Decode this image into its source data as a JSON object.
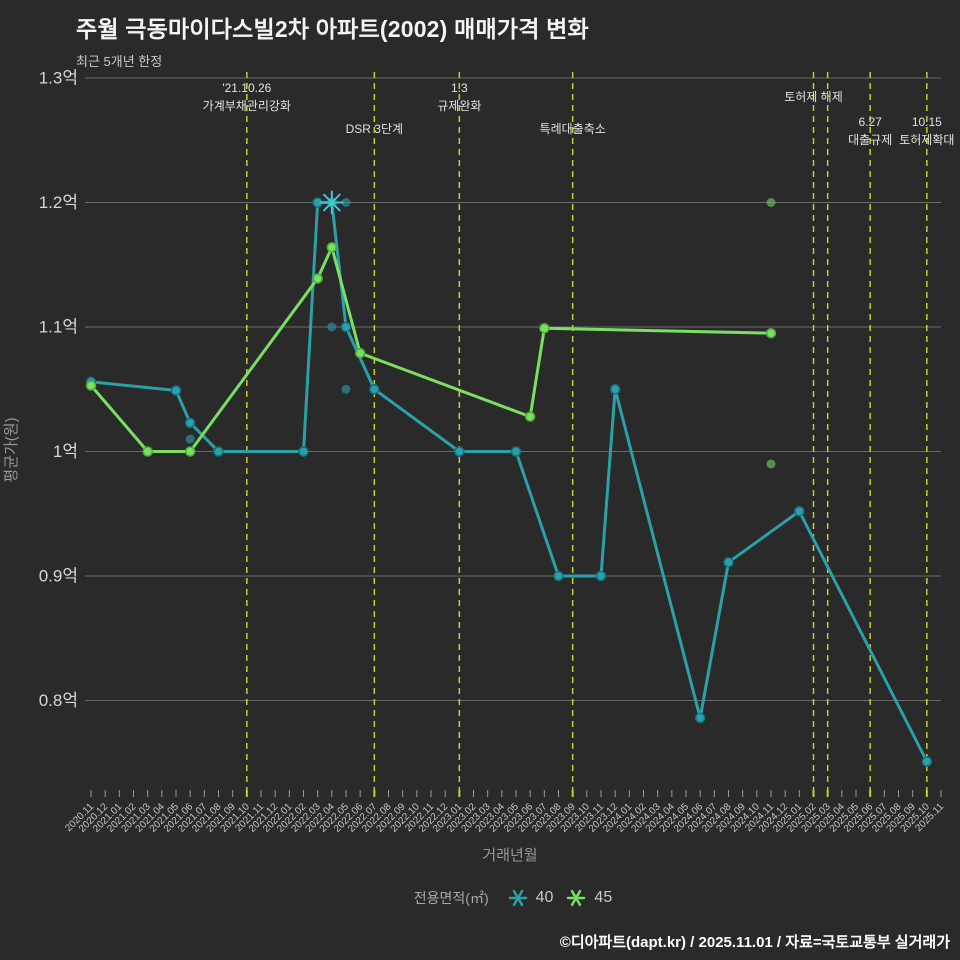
{
  "header": {
    "title": "주월 극동마이다스빌2차 아파트(2002) 매매가격 변화",
    "subtitle": "최근 5개년 한정"
  },
  "footer": {
    "credit": "©디아파트(dapt.kr) / 2025.11.01 / 자료=국토교통부 실거래가"
  },
  "colors": {
    "background": "#2a2a2a",
    "series_40": "#2aa0a8",
    "series_40_ring": "#15707e",
    "series_40_scatter": "#2a8f9b",
    "series_45": "#79de61",
    "series_45_ring": "#4da83e",
    "series_45_scatter": "#6cb95b",
    "event_line": "#c6ce2f",
    "gridline": "#757575",
    "tick": "#9a9a9a",
    "x_tick_label": "#c6c6c6",
    "y_tick_label": "#d6d6d6",
    "axis_title": "#989898",
    "event_label": "#e2e2e2"
  },
  "chart_data": {
    "type": "line",
    "title": "주월 극동마이다스빌2차 아파트(2002) 매매가격 변화",
    "xlabel": "거래년월",
    "ylabel": "평균가(원)",
    "ylim": [
      0.725,
      1.315
    ],
    "grid": "horizontal-only",
    "legend_position": "bottom-center",
    "y_ticks": [
      {
        "value": 1.3,
        "label": "1.3억"
      },
      {
        "value": 1.2,
        "label": "1.2억"
      },
      {
        "value": 1.1,
        "label": "1.1억"
      },
      {
        "value": 1.0,
        "label": "1억"
      },
      {
        "value": 0.9,
        "label": "0.9억"
      },
      {
        "value": 0.8,
        "label": "0.8억"
      }
    ],
    "categories": [
      "2020.11",
      "2020.12",
      "2021.01",
      "2021.02",
      "2021.03",
      "2021.04",
      "2021.05",
      "2021.06",
      "2021.07",
      "2021.08",
      "2021.09",
      "2021.10",
      "2021.11",
      "2021.12",
      "2022.01",
      "2022.02",
      "2022.03",
      "2022.04",
      "2022.05",
      "2022.06",
      "2022.07",
      "2022.08",
      "2022.09",
      "2022.10",
      "2022.11",
      "2022.12",
      "2023.01",
      "2023.02",
      "2023.03",
      "2023.04",
      "2023.05",
      "2023.06",
      "2023.07",
      "2023.08",
      "2023.09",
      "2023.10",
      "2023.11",
      "2023.12",
      "2024.01",
      "2024.02",
      "2024.03",
      "2024.04",
      "2024.05",
      "2024.06",
      "2024.07",
      "2024.08",
      "2024.09",
      "2024.10",
      "2024.11",
      "2024.12",
      "2025.01",
      "2025.02",
      "2025.03",
      "2025.04",
      "2025.05",
      "2025.06",
      "2025.07",
      "2025.08",
      "2025.09",
      "2025.10",
      "2025.11"
    ],
    "series": [
      {
        "name": "40",
        "points": [
          [
            "2020.11",
            1.056
          ],
          [
            "2021.05",
            1.049
          ],
          [
            "2021.06",
            1.023
          ],
          [
            "2021.08",
            1.0
          ],
          [
            "2022.02",
            1.0
          ],
          [
            "2022.03",
            1.2
          ],
          [
            "2022.04",
            1.2
          ],
          [
            "2022.05",
            1.1
          ],
          [
            "2022.07",
            1.05
          ],
          [
            "2023.01",
            1.0
          ],
          [
            "2023.05",
            1.0
          ],
          [
            "2023.08",
            0.9
          ],
          [
            "2023.11",
            0.9
          ],
          [
            "2023.12",
            1.05
          ],
          [
            "2024.06",
            0.786
          ],
          [
            "2024.08",
            0.911
          ],
          [
            "2025.01",
            0.952
          ],
          [
            "2025.10",
            0.751
          ]
        ],
        "max_point": [
          "2022.04",
          1.2
        ]
      },
      {
        "name": "45",
        "points": [
          [
            "2020.11",
            1.053
          ],
          [
            "2021.03",
            1.0
          ],
          [
            "2021.06",
            1.0
          ],
          [
            "2022.03",
            1.139
          ],
          [
            "2022.04",
            1.164
          ],
          [
            "2022.06",
            1.079
          ],
          [
            "2023.06",
            1.028
          ],
          [
            "2023.07",
            1.099
          ],
          [
            "2024.11",
            1.095
          ]
        ],
        "max_point": null
      }
    ],
    "scatter_points": [
      {
        "month": "2021.06",
        "value": 1.01,
        "series": "40"
      },
      {
        "month": "2022.04",
        "value": 1.1,
        "series": "40"
      },
      {
        "month": "2022.05",
        "value": 1.2,
        "series": "40"
      },
      {
        "month": "2022.05",
        "value": 1.05,
        "series": "40"
      },
      {
        "month": "2024.11",
        "value": 1.2,
        "series": "45"
      },
      {
        "month": "2024.11",
        "value": 0.99,
        "series": "45"
      }
    ],
    "events": [
      {
        "month": "2021.10",
        "labels": [
          "'21.10.26",
          "가계부채관리강화"
        ],
        "label_y": 92
      },
      {
        "month": "2022.07",
        "labels": [
          "DSR 3단계"
        ],
        "label_y": 133
      },
      {
        "month": "2023.01",
        "labels": [
          "1.3",
          "규제완화"
        ],
        "label_y": 92
      },
      {
        "month": "2023.09",
        "labels": [
          "특례대출축소"
        ],
        "label_y": 133
      },
      {
        "month": "2025.02",
        "labels": [
          "토허제 해제"
        ],
        "label_y": 101
      },
      {
        "month": "2025.03",
        "labels": [],
        "label_y": 0
      },
      {
        "month": "2025.06",
        "labels": [
          "6.27",
          "대출규제"
        ],
        "label_y": 126
      },
      {
        "month": "2025.10",
        "labels": [
          "10.15",
          "토허제확대"
        ],
        "label_y": 126
      }
    ],
    "legend": {
      "title": "전용면적(㎡)",
      "entries": [
        {
          "label": "40",
          "series": "40"
        },
        {
          "label": "45",
          "series": "45"
        }
      ]
    }
  }
}
